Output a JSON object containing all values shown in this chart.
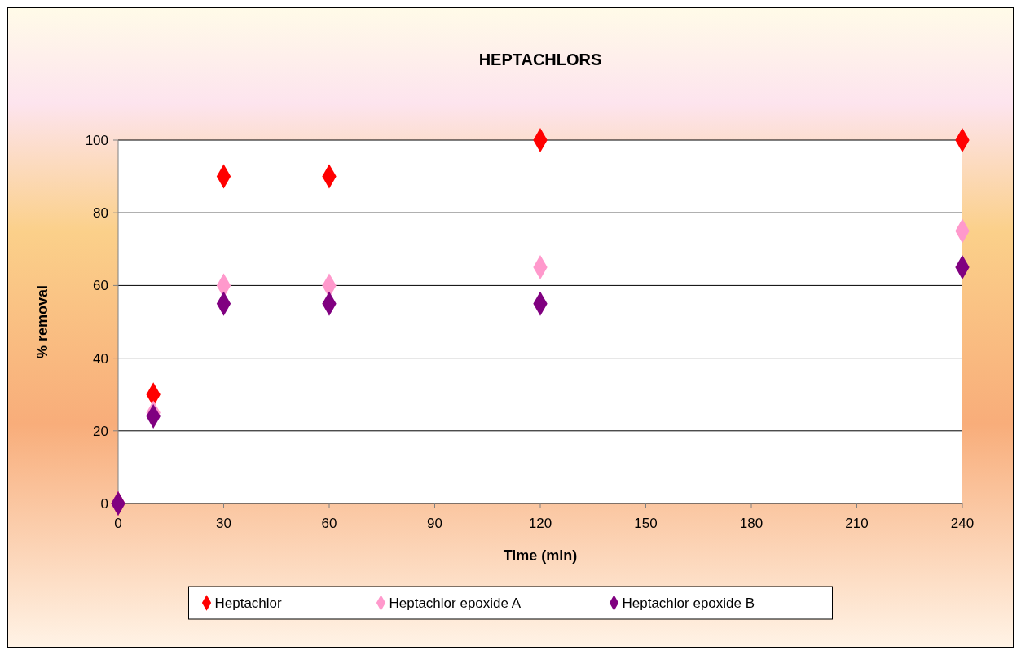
{
  "chart_data": {
    "type": "scatter",
    "title": "HEPTACHLORS",
    "xlabel": "Time (min)",
    "ylabel": "% removal",
    "x": [
      0,
      10,
      30,
      60,
      120,
      240
    ],
    "series": [
      {
        "name": "Heptachlor",
        "color": "#ff0000",
        "values": [
          0,
          30,
          90,
          90,
          100,
          100
        ]
      },
      {
        "name": "Heptachlor epoxide A",
        "color": "#ff99cc",
        "values": [
          0,
          25,
          60,
          60,
          65,
          75
        ]
      },
      {
        "name": "Heptachlor epoxide B",
        "color": "#800080",
        "values": [
          0,
          24,
          55,
          55,
          55,
          65
        ]
      }
    ],
    "xlim": [
      0,
      240
    ],
    "xticks": [
      0,
      30,
      60,
      90,
      120,
      150,
      180,
      210,
      240
    ],
    "ylim": [
      0,
      100
    ],
    "yticks": [
      0,
      20,
      40,
      60,
      80,
      100
    ],
    "grid": "y",
    "legend": "bottom",
    "marker": "diamond"
  }
}
